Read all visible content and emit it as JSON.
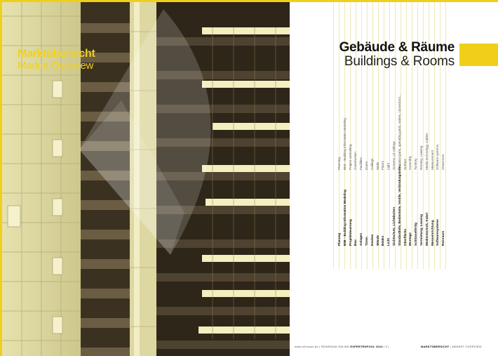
{
  "left_page": {
    "kicker_de": "Marktübersicht",
    "kicker_en": "Market Overview"
  },
  "right_page": {
    "title_de": "Gebäude & Räume",
    "title_en": "Buildings & Rooms",
    "categories_de": [
      "Planung",
      "BIM – Building Information Modeling",
      "Projektsteuerung",
      "Bau",
      "Anlagen",
      "Türen",
      "Decken",
      "Wände",
      "Böden",
      "Licht",
      "Sichtschutz, Lichtdecken",
      "Standardteile, Bedienteile, Ventile, Verbindungsteile...",
      "Oberfläche",
      "Montage",
      "Schlüsselfertig",
      "Vermietung, Leasing",
      "Medientechnik, Kabel",
      "Messeinrichtung",
      "Softwaresysteme",
      "Reinraum"
    ],
    "categories_en": [
      "Planning",
      "BIM – Building Information Modeling",
      "Project controlling",
      "Construction",
      "Facilities",
      "Doors",
      "Ceilings",
      "Walls",
      "Floors",
      "Light",
      "Screens, Lit ceilings",
      "Standard parts, operating parts, valves, connectors...",
      "Surface",
      "Assembly",
      "Turnkey",
      "Renting, Leasing",
      "Media technology, Cables",
      "Measurement",
      "Software systems",
      "Cleanroom"
    ],
    "footer_left_site": "www.reinraum.de",
    "footer_left_mid": "| REINRAUM ONLINE",
    "footer_left_title": "EXPERTENPOOL 2024",
    "footer_left_page": "| 9 |",
    "footer_right_title": "MARKTÜBERSICHT",
    "footer_right_sub": "| MARKET OVERVIEW"
  },
  "colors": {
    "accent": "#f0cf1a",
    "photo_dark": "#2b2318",
    "photo_light": "#e8e4b0"
  }
}
